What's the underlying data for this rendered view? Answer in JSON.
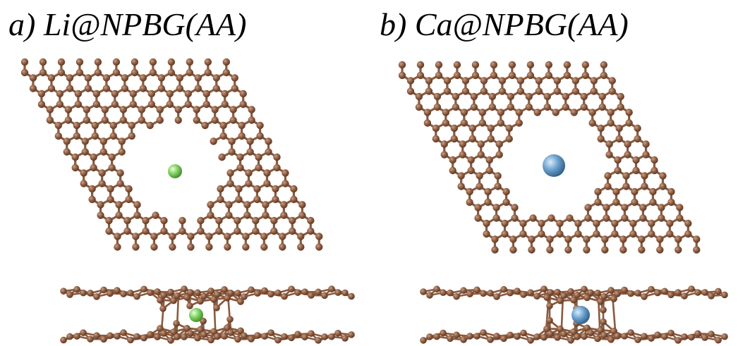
{
  "panels": [
    {
      "label": "a) Li@NPBG(AA)"
    },
    {
      "label": "b) Ca@NPBG(AA)"
    }
  ]
}
